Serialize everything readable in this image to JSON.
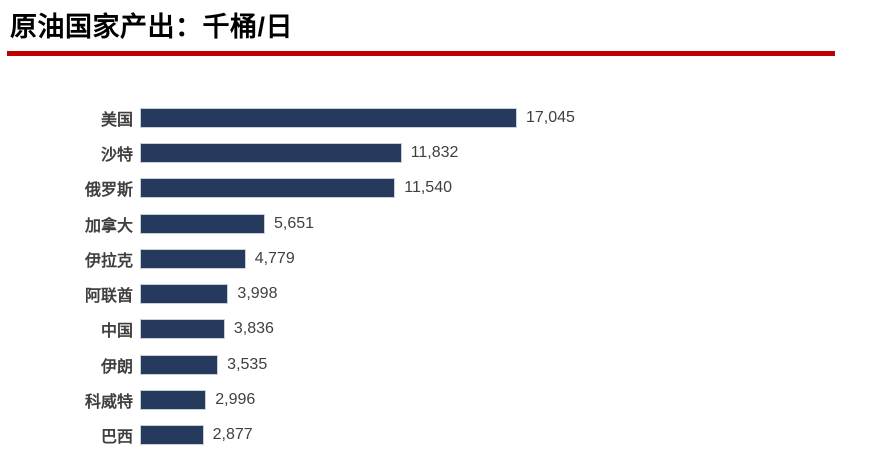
{
  "page": {
    "title": "原油国家产出：千桶/日"
  },
  "colors": {
    "accent_red": "#C00000",
    "bar_fill": "#263A5E",
    "bar_border": "#C6CFDA",
    "label_text": "#3F3F3F",
    "value_text": "#404040",
    "title_text": "#000000",
    "background": "#FFFFFF"
  },
  "chart_data": {
    "type": "bar",
    "orientation": "horizontal",
    "title": "原油国家产出：千桶/日",
    "unit": "千桶/日",
    "categories": [
      "美国",
      "沙特",
      "俄罗斯",
      "加拿大",
      "伊拉克",
      "阿联酋",
      "中国",
      "伊朗",
      "科威特",
      "巴西"
    ],
    "values": [
      17045,
      11832,
      11540,
      5651,
      4779,
      3998,
      3836,
      3535,
      2996,
      2877
    ],
    "value_labels": [
      "17,045",
      "11,832",
      "11,540",
      "5,651",
      "4,779",
      "3,998",
      "3,836",
      "3,535",
      "2,996",
      "2,877"
    ],
    "xlim": [
      0,
      17045
    ],
    "grid": false,
    "legend": false,
    "bar_color": "#263A5E"
  }
}
